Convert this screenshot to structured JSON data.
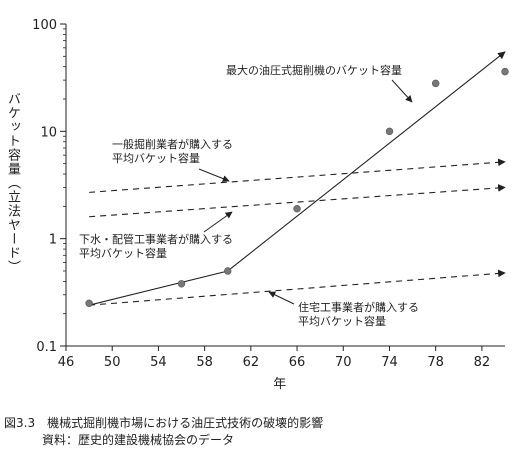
{
  "chart_data": {
    "type": "line",
    "xlabel": "年",
    "ylabel": "バケット容量（立法ヤード）",
    "xlim": [
      46,
      84
    ],
    "ylim": [
      0.1,
      100
    ],
    "y_scale": "log",
    "x_ticks": [
      "46",
      "50",
      "54",
      "58",
      "62",
      "66",
      "70",
      "74",
      "78",
      "82"
    ],
    "y_ticks": [
      "0.1",
      "1",
      "10",
      "100"
    ],
    "grid": false,
    "legend": "none",
    "series": [
      {
        "name": "最大の油圧式掘削機のバケット容量",
        "style": "solid-arrow",
        "x": [
          48,
          60,
          84
        ],
        "y": [
          0.24,
          0.5,
          55
        ],
        "points_x": [
          48,
          56,
          60,
          66,
          74,
          78,
          84
        ],
        "points_y": [
          0.25,
          0.38,
          0.5,
          1.9,
          10,
          28,
          36
        ]
      },
      {
        "name": "一般掘削業者が購入する平均バケット容量",
        "style": "dashed-arrow",
        "x": [
          48,
          84
        ],
        "y": [
          2.7,
          5.2
        ]
      },
      {
        "name": "下水・配管工事業者が購入する平均バケット容量",
        "style": "dashed-arrow",
        "x": [
          48,
          84
        ],
        "y": [
          1.6,
          3.0
        ]
      },
      {
        "name": "住宅工事業者が購入する平均バケット容量",
        "style": "dashed-arrow",
        "x": [
          48,
          84
        ],
        "y": [
          0.24,
          0.48
        ]
      }
    ],
    "annotations": [
      {
        "series": 0,
        "lines": [
          "最大の油圧式掘削機のバケット容量"
        ]
      },
      {
        "series": 1,
        "lines": [
          "一般掘削業者が購入する",
          "平均バケット容量"
        ]
      },
      {
        "series": 2,
        "lines": [
          "下水・配管工事業者が購入する",
          "平均バケット容量"
        ]
      },
      {
        "series": 3,
        "lines": [
          "住宅工事業者が購入する",
          "平均バケット容量"
        ]
      }
    ]
  },
  "caption": {
    "line1": "図3.3　機械式掘削機市場における油圧式技術の破壊的影響",
    "line2": "資料：歴史的建設機械協会のデータ"
  }
}
